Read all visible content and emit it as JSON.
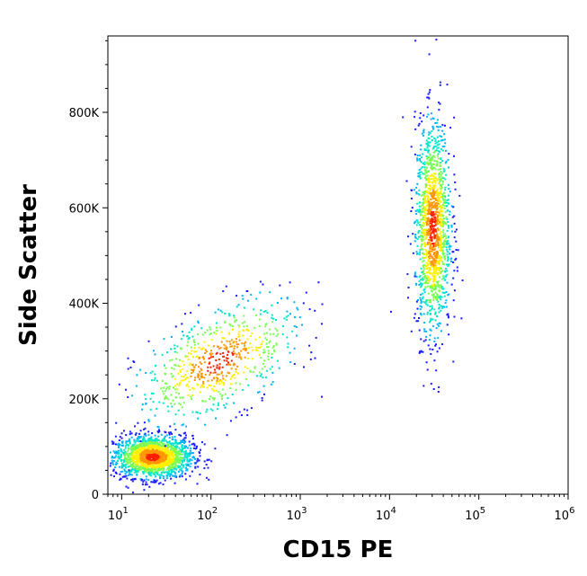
{
  "chart_data": {
    "type": "scatter",
    "style": "flow-cytometry-density-dot-plot",
    "xlabel": "CD15 PE",
    "ylabel": "Side Scatter",
    "x_scale": "log",
    "xlim": [
      7,
      1000000
    ],
    "ylim": [
      0,
      960000
    ],
    "x_ticks": [
      {
        "value": 10,
        "base": "10",
        "exp": "1"
      },
      {
        "value": 100,
        "base": "10",
        "exp": "2"
      },
      {
        "value": 1000,
        "base": "10",
        "exp": "3"
      },
      {
        "value": 10000,
        "base": "10",
        "exp": "4"
      },
      {
        "value": 100000,
        "base": "10",
        "exp": "5"
      },
      {
        "value": 1000000,
        "base": "10",
        "exp": "6"
      }
    ],
    "y_ticks": [
      {
        "value": 0,
        "label": "0"
      },
      {
        "value": 200000,
        "label": "200K"
      },
      {
        "value": 400000,
        "label": "400K"
      },
      {
        "value": 600000,
        "label": "600K"
      },
      {
        "value": 800000,
        "label": "800K"
      }
    ],
    "grid": false,
    "density_colors": [
      "#1a1aff",
      "#00b4ff",
      "#00e6c8",
      "#78ff50",
      "#fff000",
      "#ff9600",
      "#ff1e00"
    ],
    "populations": [
      {
        "center_x": 22,
        "center_y": 80000,
        "spread_log_x": 0.22,
        "spread_y": 22000,
        "count": 1800
      },
      {
        "center_x": 30000,
        "center_y": 560000,
        "spread_log_x": 0.1,
        "spread_y": 110000,
        "count": 1400
      },
      {
        "center_x": 120,
        "center_y": 280000,
        "spread_log_x": 0.45,
        "spread_y": 55000,
        "count": 700
      }
    ]
  }
}
